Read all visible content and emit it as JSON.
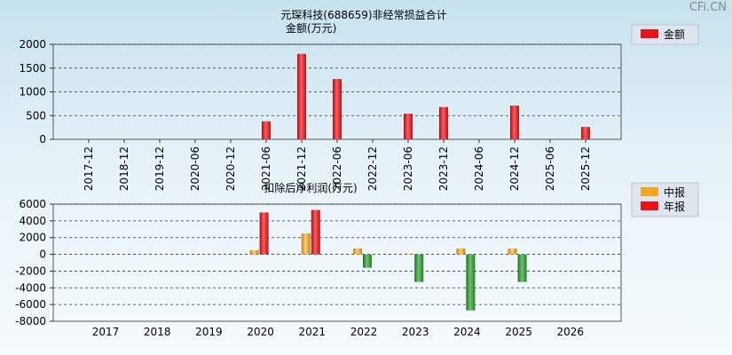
{
  "watermark": "CFi.CN",
  "chart_data": [
    {
      "type": "bar",
      "title": "元琛科技(688659)非经常损益合计",
      "subtitle": "金额(万元)",
      "categories": [
        "2017-12",
        "2018-12",
        "2019-12",
        "2020-06",
        "2020-12",
        "2021-06",
        "2021-12",
        "2022-06",
        "2022-12",
        "2023-06",
        "2023-12",
        "2024-06",
        "2024-12",
        "2025-06",
        "2025-12"
      ],
      "series": [
        {
          "name": "金额",
          "color": "#e8141c",
          "values": [
            null,
            null,
            null,
            null,
            null,
            380,
            1800,
            1270,
            null,
            540,
            680,
            null,
            710,
            null,
            260
          ]
        }
      ],
      "yticks": [
        0,
        500,
        1000,
        1500,
        2000
      ],
      "ylim": [
        0,
        2000
      ],
      "grid": true,
      "legend": "top-right"
    },
    {
      "type": "bar",
      "title": "扣除后净利润(万元)",
      "categories": [
        "2017",
        "2018",
        "2019",
        "2020",
        "2021",
        "2022",
        "2023",
        "2024",
        "2025",
        "2026"
      ],
      "series": [
        {
          "name": "中报",
          "color": "#f5a623",
          "values": [
            null,
            null,
            null,
            500,
            2500,
            700,
            100,
            700,
            700,
            null
          ]
        },
        {
          "name": "年报",
          "color": "#e8141c",
          "negative_color": "#3a9a3a",
          "values": [
            null,
            null,
            null,
            5000,
            5300,
            -1600,
            -3300,
            -6700,
            -3300,
            null
          ]
        }
      ],
      "yticks": [
        -8000,
        -6000,
        -4000,
        -2000,
        0,
        2000,
        4000,
        6000
      ],
      "ylim": [
        -8000,
        6000
      ],
      "grid": true,
      "legend": "top-right"
    }
  ]
}
